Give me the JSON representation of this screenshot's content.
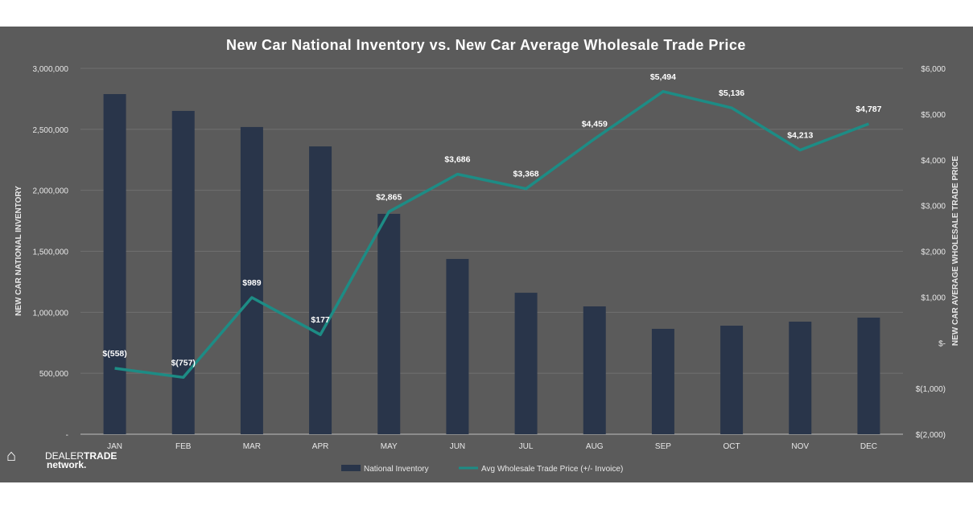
{
  "chart_data": {
    "type": "bar+line",
    "title": "New Car National Inventory vs. New Car Average Wholesale Trade Price",
    "categories": [
      "JAN",
      "FEB",
      "MAR",
      "APR",
      "MAY",
      "JUN",
      "JUL",
      "AUG",
      "SEP",
      "OCT",
      "NOV",
      "DEC"
    ],
    "ylabel": "NEW CAR NATIONAL INVENTORY",
    "y2label": "NEW CAR AVERAGE WHOLESALE TRADE PRICE",
    "ylim": [
      0,
      3000000
    ],
    "y2lim": [
      -2000,
      6000
    ],
    "yticks": [
      0,
      500000,
      1000000,
      1500000,
      2000000,
      2500000,
      3000000
    ],
    "ytick_labels": [
      "-",
      "500,000",
      "1,000,000",
      "1,500,000",
      "2,000,000",
      "2,500,000",
      "3,000,000"
    ],
    "y2ticks": [
      -2000,
      -1000,
      0,
      1000,
      2000,
      3000,
      4000,
      5000,
      6000
    ],
    "y2tick_labels": [
      "$(2,000)",
      "$(1,000)",
      "$-",
      "$1,000",
      "$2,000",
      "$3,000",
      "$4,000",
      "$5,000",
      "$6,000"
    ],
    "grid": true,
    "legend_position": "bottom",
    "series": [
      {
        "name": "National Inventory",
        "type": "bar",
        "axis": "left",
        "color": "#29354a",
        "values": [
          2789000,
          2651000,
          2519000,
          2360000,
          1807000,
          1437000,
          1160000,
          1048000,
          864000,
          890000,
          923000,
          956000
        ]
      },
      {
        "name": "Avg Wholesale Trade Price (+/- Invoice)",
        "type": "line",
        "axis": "right",
        "color": "#1d8c85",
        "values": [
          -558,
          -757,
          989,
          177,
          2865,
          3686,
          3368,
          4459,
          5494,
          5136,
          4213,
          4787
        ],
        "labels": [
          "$(558)",
          "$(757)",
          "$989",
          "$177",
          "$2,865",
          "$3,686",
          "$3,368",
          "$4,459",
          "$5,494",
          "$5,136",
          "$4,213",
          "$4,787"
        ]
      }
    ]
  },
  "logo": {
    "text_a": "DEALER",
    "text_b": "TRADE",
    "text_c": "network."
  }
}
